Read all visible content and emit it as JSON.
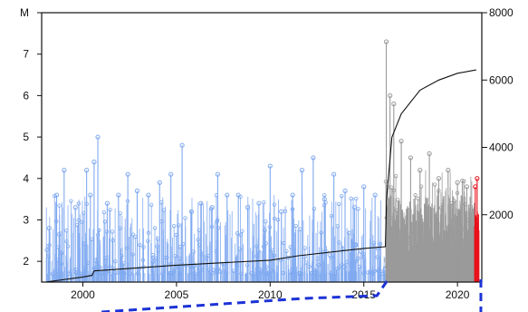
{
  "chart_data": {
    "type": "line",
    "title": "",
    "xlabel": "",
    "ylabel_left": "M",
    "ylabel_right": "",
    "xlim": [
      1997.8,
      2021.3
    ],
    "ylim_left": [
      1.5,
      8.0
    ],
    "ylim_right": [
      0,
      8000
    ],
    "x_ticks": [
      2000,
      2005,
      2010,
      2015,
      2020
    ],
    "x_tick_labels": [
      "2000",
      "2005",
      "2010",
      "2015",
      "2020"
    ],
    "y_left_ticks": [
      2,
      3,
      4,
      5,
      6,
      7,
      8
    ],
    "y_left_tick_labels": [
      "2",
      "3",
      "4",
      "5",
      "6",
      "7",
      "M"
    ],
    "y_right_ticks": [
      2000,
      4000,
      6000,
      8000
    ],
    "y_right_tick_labels": [
      "2000",
      "4000",
      "6000",
      "8000"
    ],
    "grid": false,
    "legend": "none",
    "colors": {
      "pre_sequence": "#7fa9f0",
      "sequence": "#9a9a9a",
      "recent": "#e8111b",
      "cumulative": "#111111",
      "zoom_connector": "#1c33d6"
    },
    "series": [
      {
        "kind": "magnitude_stems_sample",
        "values": [
          {
            "x": 1998.2,
            "y": 2.8
          },
          {
            "x": 1998.6,
            "y": 3.6
          },
          {
            "x": 1999.0,
            "y": 4.2
          },
          {
            "x": 1999.6,
            "y": 3.3
          },
          {
            "x": 2000.2,
            "y": 4.2
          },
          {
            "x": 2000.4,
            "y": 3.6
          },
          {
            "x": 2000.6,
            "y": 4.4
          },
          {
            "x": 2000.8,
            "y": 5.0
          },
          {
            "x": 2001.3,
            "y": 3.4
          },
          {
            "x": 2001.9,
            "y": 3.6
          },
          {
            "x": 2002.4,
            "y": 4.1
          },
          {
            "x": 2002.9,
            "y": 3.7
          },
          {
            "x": 2003.5,
            "y": 3.6
          },
          {
            "x": 2004.1,
            "y": 3.9
          },
          {
            "x": 2004.7,
            "y": 4.1
          },
          {
            "x": 2005.3,
            "y": 4.8
          },
          {
            "x": 2005.8,
            "y": 3.2
          },
          {
            "x": 2006.3,
            "y": 3.4
          },
          {
            "x": 2006.9,
            "y": 3.3
          },
          {
            "x": 2007.2,
            "y": 4.1
          },
          {
            "x": 2007.7,
            "y": 3.6
          },
          {
            "x": 2008.3,
            "y": 3.6
          },
          {
            "x": 2008.8,
            "y": 3.3
          },
          {
            "x": 2009.4,
            "y": 3.4
          },
          {
            "x": 2010.0,
            "y": 4.3
          },
          {
            "x": 2010.6,
            "y": 3.2
          },
          {
            "x": 2011.2,
            "y": 3.6
          },
          {
            "x": 2011.7,
            "y": 4.2
          },
          {
            "x": 2012.3,
            "y": 4.5
          },
          {
            "x": 2012.9,
            "y": 3.5
          },
          {
            "x": 2013.4,
            "y": 4.1
          },
          {
            "x": 2014.0,
            "y": 3.7
          },
          {
            "x": 2014.5,
            "y": 3.3
          },
          {
            "x": 2015.0,
            "y": 3.8
          },
          {
            "x": 2015.6,
            "y": 3.6
          },
          {
            "x": 2016.2,
            "y": 7.3
          },
          {
            "x": 2016.4,
            "y": 6.0
          },
          {
            "x": 2016.6,
            "y": 5.8
          },
          {
            "x": 2017.0,
            "y": 4.9
          },
          {
            "x": 2017.5,
            "y": 4.5
          },
          {
            "x": 2018.0,
            "y": 4.2
          },
          {
            "x": 2018.5,
            "y": 4.6
          },
          {
            "x": 2019.0,
            "y": 4.0
          },
          {
            "x": 2019.5,
            "y": 4.2
          },
          {
            "x": 2020.0,
            "y": 3.9
          },
          {
            "x": 2020.5,
            "y": 3.8
          },
          {
            "x": 2020.95,
            "y": 3.8
          },
          {
            "x": 2021.05,
            "y": 4.0
          }
        ]
      },
      {
        "kind": "cumulative_count",
        "axis": "right",
        "values": [
          {
            "x": 1998.0,
            "y": 0
          },
          {
            "x": 2000.0,
            "y": 150
          },
          {
            "x": 2000.5,
            "y": 200
          },
          {
            "x": 2000.6,
            "y": 330
          },
          {
            "x": 2005.0,
            "y": 500
          },
          {
            "x": 2010.0,
            "y": 650
          },
          {
            "x": 2011.5,
            "y": 780
          },
          {
            "x": 2015.0,
            "y": 1000
          },
          {
            "x": 2016.15,
            "y": 1050
          },
          {
            "x": 2016.22,
            "y": 2500
          },
          {
            "x": 2016.5,
            "y": 4300
          },
          {
            "x": 2017.0,
            "y": 5000
          },
          {
            "x": 2018.0,
            "y": 5700
          },
          {
            "x": 2019.0,
            "y": 6000
          },
          {
            "x": 2020.0,
            "y": 6200
          },
          {
            "x": 2021.0,
            "y": 6300
          }
        ]
      }
    ]
  }
}
